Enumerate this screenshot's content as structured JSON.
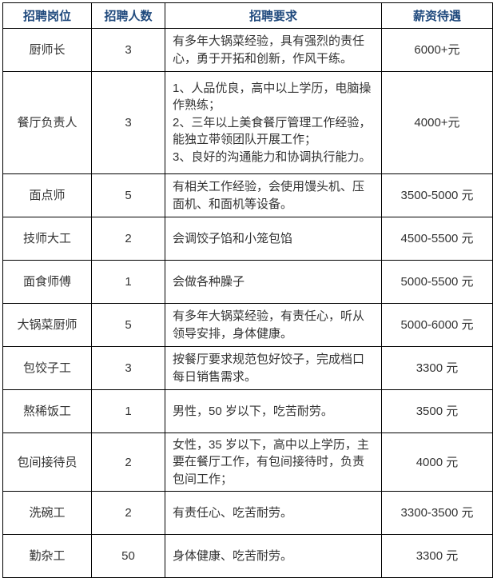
{
  "colors": {
    "header_text": "#1F497D",
    "body_text": "#333333",
    "border": "#000000",
    "background": "#FFFFFF"
  },
  "table": {
    "headers": [
      "招聘岗位",
      "招聘人数",
      "招聘要求",
      "薪资待遇"
    ],
    "rows": [
      {
        "position": "厨师长",
        "count": "3",
        "requirements": "有多年大锅菜经验，具有强烈的责任心，勇于开拓和创新，作风干练。",
        "salary": "6000+元"
      },
      {
        "position": "餐厅负责人",
        "count": "3",
        "requirements": "1、人品优良，高中以上学历，电脑操作熟练；\n2、三年以上美食餐厅管理工作经验，能独立带领团队开展工作；\n3、良好的沟通能力和协调执行能力。",
        "salary": "4000+元"
      },
      {
        "position": "面点师",
        "count": "5",
        "requirements": "有相关工作经验，会使用馒头机、压面机、和面机等设备。",
        "salary": "3500-5000 元"
      },
      {
        "position": "技师大工",
        "count": "2",
        "requirements": "会调饺子馅和小笼包馅",
        "salary": "4500-5500 元"
      },
      {
        "position": "面食师傅",
        "count": "1",
        "requirements": "会做各种臊子",
        "salary": "5000-5500 元"
      },
      {
        "position": "大锅菜厨师",
        "count": "5",
        "requirements": "有多年大锅菜经验，有责任心，听从领导安排，身体健康。",
        "salary": "5000-6000 元"
      },
      {
        "position": "包饺子工",
        "count": "3",
        "requirements": "按餐厅要求规范包好饺子，完成档口每日销售需求。",
        "salary": "3300 元"
      },
      {
        "position": "熬稀饭工",
        "count": "1",
        "requirements": "男性，50 岁以下，吃苦耐劳。",
        "salary": "3500 元"
      },
      {
        "position": "包间接待员",
        "count": "2",
        "requirements": "女性，35 岁以下，高中以上学历，主要在餐厅工作，有包间接待时，负责包间工作；",
        "salary": "4000 元"
      },
      {
        "position": "洗碗工",
        "count": "2",
        "requirements": "有责任心、吃苦耐劳。",
        "salary": "3300-3500 元"
      },
      {
        "position": "勤杂工",
        "count": "50",
        "requirements": "身体健康、吃苦耐劳。",
        "salary": "3300 元"
      }
    ]
  }
}
